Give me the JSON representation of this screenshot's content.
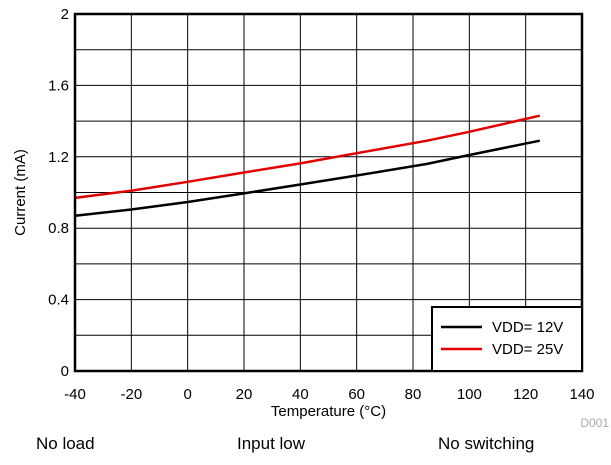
{
  "chart_data": {
    "type": "line",
    "xlabel": "Temperature (°C)",
    "ylabel": "Current (mA)",
    "xlim": [
      -40,
      140
    ],
    "ylim": [
      0,
      2
    ],
    "x_ticks": [
      "-40",
      "-20",
      "0",
      "20",
      "40",
      "60",
      "80",
      "100",
      "120",
      "140"
    ],
    "y_ticks": [
      "0",
      "0.4",
      "0.8",
      "1.2",
      "1.6",
      "2"
    ],
    "grid": true,
    "legend_position": "bottom-right",
    "series": [
      {
        "name": "VDD= 12V",
        "color": "#000000",
        "x": [
          -40,
          -20,
          0,
          20,
          40,
          60,
          85,
          100,
          125
        ],
        "y": [
          0.87,
          0.905,
          0.947,
          0.995,
          1.045,
          1.095,
          1.16,
          1.21,
          1.29
        ]
      },
      {
        "name": "VDD= 25V",
        "color": "#e00000",
        "x": [
          -40,
          -20,
          0,
          20,
          40,
          60,
          85,
          100,
          125
        ],
        "y": [
          0.97,
          1.01,
          1.06,
          1.112,
          1.163,
          1.22,
          1.29,
          1.34,
          1.43
        ]
      }
    ],
    "watermark": "D001"
  },
  "captions": {
    "left": "No load",
    "middle": "Input low",
    "right": "No switching"
  }
}
